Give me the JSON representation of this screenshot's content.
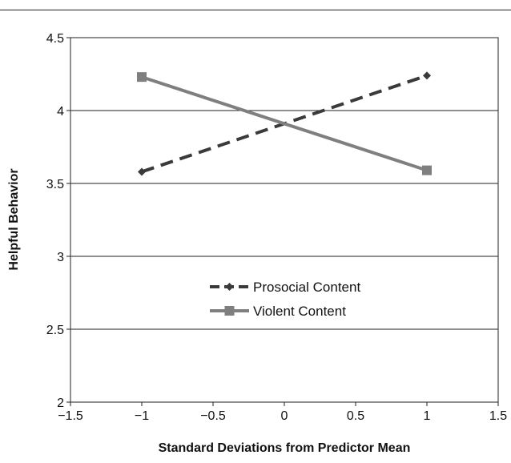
{
  "chart_data": {
    "type": "line",
    "xlabel": "Standard Deviations from Predictor Mean",
    "ylabel": "Helpful Behavior",
    "xlim": [
      -1.5,
      1.5
    ],
    "ylim": [
      2,
      4.5
    ],
    "x_ticks": [
      -1.5,
      -1,
      -0.5,
      0,
      0.5,
      1,
      1.5
    ],
    "x_tick_labels": [
      "−1.5",
      "−1",
      "−0.5",
      "0",
      "0.5",
      "1",
      "1.5"
    ],
    "y_ticks": [
      2,
      2.5,
      3,
      3.5,
      4,
      4.5
    ],
    "y_tick_labels": [
      "2",
      "2.5",
      "3",
      "3.5",
      "4",
      "4.5"
    ],
    "grid": "horizontal",
    "legend_position": "center-left",
    "series": [
      {
        "name": "Prosocial Content",
        "x": [
          -1,
          1
        ],
        "values": [
          3.58,
          4.24
        ],
        "color": "#3a3a3a",
        "line_style": "dashed",
        "marker": "diamond"
      },
      {
        "name": "Violent Content",
        "x": [
          -1,
          1
        ],
        "values": [
          4.23,
          3.59
        ],
        "color": "#7f7f7f",
        "line_style": "solid",
        "marker": "square"
      }
    ]
  }
}
